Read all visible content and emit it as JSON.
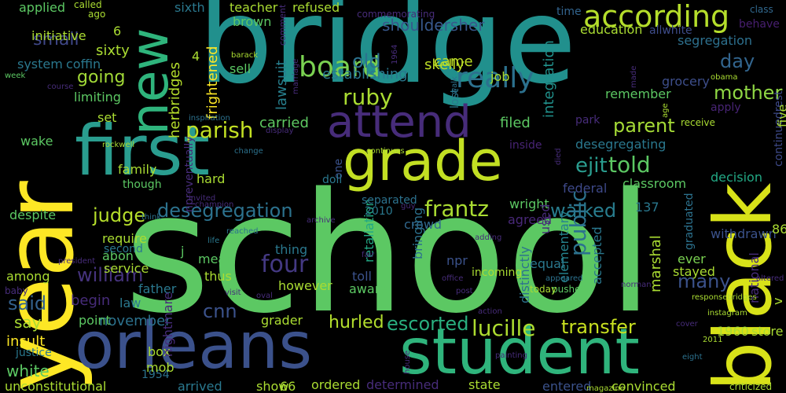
{
  "background": "#000000",
  "palette": [
    "#440154",
    "#472c7a",
    "#3b518b",
    "#2c718e",
    "#21908d",
    "#27ad81",
    "#5cc863",
    "#aadc32",
    "#fde725"
  ],
  "words": [
    {
      "t": "school",
      "c": "#5cc863"
    },
    {
      "t": "bridge",
      "c": "#21908d"
    },
    {
      "t": "year",
      "c": "#fde725"
    },
    {
      "t": "black",
      "c": "#d8e219"
    },
    {
      "t": "first",
      "c": "#2a9d8f"
    },
    {
      "t": "orleans",
      "c": "#3b518b"
    },
    {
      "t": "student",
      "c": "#2fb47c"
    },
    {
      "t": "grade",
      "c": "#c2df23"
    },
    {
      "t": "new",
      "c": "#2fb47c"
    },
    {
      "t": "attend",
      "c": "#472c7a"
    },
    {
      "t": "according",
      "c": "#b5de2b"
    },
    {
      "t": "really",
      "c": "#2c718e"
    },
    {
      "t": "board",
      "c": "#7ad151"
    },
    {
      "t": "shouldersher",
      "c": "#38588c"
    },
    {
      "t": "told",
      "c": "#5cc863"
    },
    {
      "t": "frantz",
      "c": "#aadc32"
    },
    {
      "t": "ruby",
      "c": "#aadc32"
    },
    {
      "t": "parish",
      "c": "#c2df23"
    },
    {
      "t": "four",
      "c": "#443983"
    },
    {
      "t": "lucille",
      "c": "#addc30"
    },
    {
      "t": "transfer",
      "c": "#c8e020"
    },
    {
      "t": "mother",
      "c": "#8fd744"
    },
    {
      "t": "walked",
      "c": "#287d8e"
    },
    {
      "t": "desegregation",
      "c": "#2c728e"
    },
    {
      "t": "judge",
      "c": "#b5de2b"
    },
    {
      "t": "william",
      "c": "#46337e"
    },
    {
      "t": "said",
      "c": "#34618d"
    },
    {
      "t": "cnn",
      "c": "#3b528b"
    },
    {
      "t": "escorted",
      "c": "#29af7f"
    },
    {
      "t": "public",
      "c": "#2c728e"
    },
    {
      "t": "parent",
      "c": "#a5db36"
    },
    {
      "t": "day",
      "c": "#32658e"
    },
    {
      "t": "old",
      "c": "#2c728e"
    },
    {
      "t": "carried",
      "c": "#5ec962"
    },
    {
      "t": "filed",
      "c": "#5cc863"
    },
    {
      "t": "ejit",
      "c": "#2a9d8f"
    },
    {
      "t": "many",
      "c": "#3b528b"
    },
    {
      "t": "hurled",
      "c": "#b2dd2d"
    },
    {
      "t": "small",
      "c": "#3f4788"
    },
    {
      "t": "going",
      "c": "#a2da37"
    },
    {
      "t": "herbridges",
      "c": "#b5de2b"
    },
    {
      "t": "frightened",
      "c": "#fde725"
    },
    {
      "t": "lawsuit",
      "c": "#277f8e"
    },
    {
      "t": "came",
      "c": "#bddf26"
    },
    {
      "t": "skelly",
      "c": "#bddf26"
    },
    {
      "t": "establishing",
      "c": "#2a788e"
    },
    {
      "t": "integration",
      "c": "#21918c"
    },
    {
      "t": "job",
      "c": "#a8db34"
    },
    {
      "t": "grocery",
      "c": "#3d4e8a"
    },
    {
      "t": "remember",
      "c": "#5cc863"
    },
    {
      "t": "segregation",
      "c": "#2d708e"
    },
    {
      "t": "education",
      "c": "#aadc32"
    },
    {
      "t": "allwhite",
      "c": "#3e4c8a"
    },
    {
      "t": "behave",
      "c": "#481f70"
    },
    {
      "t": "class",
      "c": "#31688e"
    },
    {
      "t": "time",
      "c": "#32648e"
    },
    {
      "t": "apply",
      "c": "#482475"
    },
    {
      "t": "park",
      "c": "#472c7a"
    },
    {
      "t": "receive",
      "c": "#aadc32"
    },
    {
      "t": "desegregating",
      "c": "#2a788e"
    },
    {
      "t": "inside",
      "c": "#482475"
    },
    {
      "t": "classroom",
      "c": "#5cc863"
    },
    {
      "t": "decision",
      "c": "#22a884"
    },
    {
      "t": "continuedrest",
      "c": "#3e4a89"
    },
    {
      "t": "federal",
      "c": "#3e4989"
    },
    {
      "t": "marshal",
      "c": "#aadc32"
    },
    {
      "t": "accepted",
      "c": "#2a788e"
    },
    {
      "t": "elementary",
      "c": "#25838e"
    },
    {
      "t": "graduated",
      "c": "#2c728e"
    },
    {
      "t": "withdrawn",
      "c": "#3b528b"
    },
    {
      "t": "ever",
      "c": "#7ad151"
    },
    {
      "t": "stayed",
      "c": "#aadc32"
    },
    {
      "t": "equal",
      "c": "#2a788e"
    },
    {
      "t": "npr",
      "c": "#3b528b"
    },
    {
      "t": "incoming",
      "c": "#aadc32"
    },
    {
      "t": "toll",
      "c": "#3b528b"
    },
    {
      "t": "aware",
      "c": "#5cc863"
    },
    {
      "t": "however",
      "c": "#aadc32"
    },
    {
      "t": "thing",
      "c": "#2a788e"
    },
    {
      "t": "retaliation",
      "c": "#22a884"
    },
    {
      "t": "bringing",
      "c": "#2c728e"
    },
    {
      "t": "distinctly",
      "c": "#2c728e"
    },
    {
      "t": "crowd",
      "c": "#31688e"
    },
    {
      "t": "agreed",
      "c": "#482878"
    },
    {
      "t": "wright",
      "c": "#5cc863"
    },
    {
      "t": "used",
      "c": "#472c7a"
    },
    {
      "t": "137",
      "c": "#2a788e"
    },
    {
      "t": "1960",
      "c": "#aadc32"
    },
    {
      "t": "store",
      "c": "#aadc32"
    },
    {
      "t": "grader",
      "c": "#aadc32"
    },
    {
      "t": "ordered",
      "c": "#aadc32"
    },
    {
      "t": "determined",
      "c": "#472c7a"
    },
    {
      "t": "state",
      "c": "#aadc32"
    },
    {
      "t": "entered",
      "c": "#3b528b"
    },
    {
      "t": "convinced",
      "c": "#aadc32"
    },
    {
      "t": "pushed",
      "c": "#5cc863"
    },
    {
      "t": "today",
      "c": "#aadc32"
    },
    {
      "t": "unconstitutional",
      "c": "#aadc32"
    },
    {
      "t": "1954",
      "c": "#2c728e"
    },
    {
      "t": "arrived",
      "c": "#2a788e"
    },
    {
      "t": "show",
      "c": "#aadc32"
    },
    {
      "t": "66",
      "c": "#aadc32"
    },
    {
      "t": "white",
      "c": "#5cc863"
    },
    {
      "t": "say",
      "c": "#aadc32"
    },
    {
      "t": "insult",
      "c": "#fde725"
    },
    {
      "t": "justice",
      "c": "#2a788e"
    },
    {
      "t": "november",
      "c": "#2c728e"
    },
    {
      "t": "point",
      "c": "#5cc863"
    },
    {
      "t": "mob",
      "c": "#aadc32"
    },
    {
      "t": "box",
      "c": "#aadc32"
    },
    {
      "t": "begin",
      "c": "#472c7a"
    },
    {
      "t": "law",
      "c": "#2a788e"
    },
    {
      "t": "father",
      "c": "#2a788e"
    },
    {
      "t": "thus",
      "c": "#aadc32"
    },
    {
      "t": "mean",
      "c": "#5cc863"
    },
    {
      "t": "j",
      "c": "#5cc863"
    },
    {
      "t": "service",
      "c": "#aadc32"
    },
    {
      "t": "abon",
      "c": "#5cc863"
    },
    {
      "t": "require",
      "c": "#aadc32"
    },
    {
      "t": "second",
      "c": "#2a788e"
    },
    {
      "t": "among",
      "c": "#aadc32"
    },
    {
      "t": "despite",
      "c": "#5cc863"
    },
    {
      "t": "family",
      "c": "#aadc32"
    },
    {
      "t": "though",
      "c": "#5cc863"
    },
    {
      "t": "wake",
      "c": "#5cc863"
    },
    {
      "t": "hard",
      "c": "#aadc32"
    },
    {
      "t": "set",
      "c": "#aadc32"
    },
    {
      "t": "limiting",
      "c": "#5cc863"
    },
    {
      "t": "sixty",
      "c": "#aadc32"
    },
    {
      "t": "system",
      "c": "#2a788e"
    },
    {
      "t": "coffin",
      "c": "#2a788e"
    },
    {
      "t": "initiative",
      "c": "#aadc32"
    },
    {
      "t": "applied",
      "c": "#5cc863"
    },
    {
      "t": "6",
      "c": "#aadc32"
    },
    {
      "t": "sixth",
      "c": "#2a788e"
    },
    {
      "t": "teacher",
      "c": "#aadc32"
    },
    {
      "t": "refused",
      "c": "#aadc32"
    },
    {
      "t": "brown",
      "c": "#5cc863"
    },
    {
      "t": "sell",
      "c": "#5cc863"
    },
    {
      "t": "lost",
      "c": "#2a788e"
    },
    {
      "t": "4",
      "c": "#aadc32"
    },
    {
      "t": "one",
      "c": "#3b528b"
    },
    {
      "t": "2010",
      "c": "#2a788e"
    },
    {
      "t": "doll",
      "c": "#2a788e"
    },
    {
      "t": "v",
      "c": "#aadc32"
    },
    {
      "t": "86",
      "c": "#aadc32"
    },
    {
      "t": "nightmare",
      "c": "#472c7a"
    },
    {
      "t": "npreventually",
      "c": "#472c7a"
    },
    {
      "t": "separated",
      "c": "#2c728e"
    },
    {
      "t": "national",
      "c": "#472c7a"
    },
    {
      "t": "five",
      "c": "#aadc32"
    },
    {
      "t": "ago",
      "c": "#aadc32"
    },
    {
      "t": "called",
      "c": "#aadc32"
    },
    {
      "t": "comment",
      "c": "#472c7a"
    },
    {
      "t": "commemorating",
      "c": "#472c7a"
    },
    {
      "t": "barack",
      "c": "#aadc32"
    },
    {
      "t": "week",
      "c": "#5cc863"
    },
    {
      "t": "inspiration",
      "c": "#2c728e"
    },
    {
      "t": "display",
      "c": "#472c7a"
    },
    {
      "t": "rockwell",
      "c": "#aadc32"
    },
    {
      "t": "change",
      "c": "#2c728e"
    },
    {
      "t": "invited",
      "c": "#472c7a"
    },
    {
      "t": "champion",
      "c": "#472c7a"
    },
    {
      "t": "continues",
      "c": "#aadc32"
    },
    {
      "t": "think",
      "c": "#2c728e"
    },
    {
      "t": "reached",
      "c": "#2c728e"
    },
    {
      "t": "life",
      "c": "#2a788e"
    },
    {
      "t": "visit",
      "c": "#472c7a"
    },
    {
      "t": "archive",
      "c": "#472c7a"
    },
    {
      "t": "guy",
      "c": "#472c7a"
    },
    {
      "t": "adding",
      "c": "#472c7a"
    },
    {
      "t": "fair",
      "c": "#472c7a"
    },
    {
      "t": "office",
      "c": "#472c7a"
    },
    {
      "t": "appeared",
      "c": "#2c728e"
    },
    {
      "t": "norman",
      "c": "#472c7a"
    },
    {
      "t": "altered",
      "c": "#472c7a"
    },
    {
      "t": "responsebridges",
      "c": "#aadc32"
    },
    {
      "t": "instagram",
      "c": "#aadc32"
    },
    {
      "t": "cover",
      "c": "#472c7a"
    },
    {
      "t": "2011",
      "c": "#aadc32"
    },
    {
      "t": "eight",
      "c": "#2c728e"
    },
    {
      "t": "criticized",
      "c": "#aadc32"
    },
    {
      "t": "magazine",
      "c": "#aadc32"
    },
    {
      "t": "house",
      "c": "#472c7a"
    },
    {
      "t": "painting",
      "c": "#472c7a"
    },
    {
      "t": "post",
      "c": "#472c7a"
    },
    {
      "t": "action",
      "c": "#472c7a"
    },
    {
      "t": "oval",
      "c": "#472c7a"
    },
    {
      "t": "died",
      "c": "#472c7a"
    },
    {
      "t": "made",
      "c": "#472c7a"
    },
    {
      "t": "age",
      "c": "#aadc32"
    },
    {
      "t": "obama",
      "c": "#aadc32"
    },
    {
      "t": "walk",
      "c": "#2c728e"
    },
    {
      "t": "marriage",
      "c": "#472c7a"
    },
    {
      "t": "baby",
      "c": "#472c7a"
    },
    {
      "t": "president",
      "c": "#472c7a"
    },
    {
      "t": "course",
      "c": "#472c7a"
    },
    {
      "t": "1964",
      "c": "#472c7a"
    }
  ]
}
